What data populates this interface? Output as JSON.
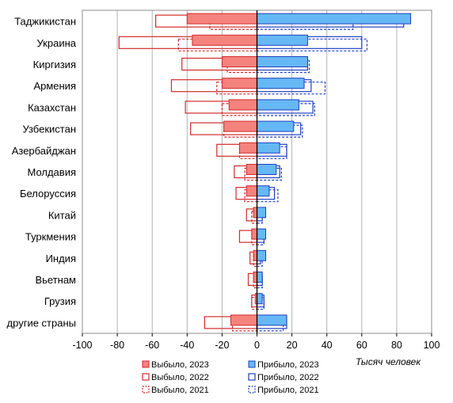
{
  "chart_data": {
    "type": "bar",
    "orientation": "horizontal",
    "xlabel": "Тысяч человек",
    "xlim": [
      -100,
      100
    ],
    "x_ticks": [
      -100,
      -80,
      -60,
      -40,
      -20,
      0,
      20,
      40,
      60,
      80,
      100
    ],
    "grid": true,
    "legend_position": "bottom",
    "categories": [
      "Таджикистан",
      "Украина",
      "Киргизия",
      "Армения",
      "Казахстан",
      "Узбекистан",
      "Азербайджан",
      "Молдавия",
      "Белоруссия",
      "Китай",
      "Туркмения",
      "Индия",
      "Вьетнам",
      "Грузия",
      "другие страны"
    ],
    "series": [
      {
        "name": "Выбыло, 2023",
        "style": "filled",
        "side": "negative",
        "values": [
          -40,
          -37,
          -20,
          -20,
          -16,
          -19,
          -10,
          -6,
          -6,
          -2,
          -3,
          -2,
          -2,
          -1,
          -15
        ]
      },
      {
        "name": "Выбыло, 2022",
        "style": "outline",
        "side": "negative",
        "values": [
          -58,
          -79,
          -43,
          -49,
          -41,
          -38,
          -23,
          -13,
          -12,
          -6,
          -10,
          -4,
          -5,
          -3,
          -30
        ]
      },
      {
        "name": "Выбыло, 2021",
        "style": "dashed",
        "side": "negative",
        "values": [
          -27,
          -45,
          -17,
          -23,
          -20,
          -19,
          -10,
          -7,
          -7,
          -3,
          -3,
          -2,
          -2,
          -3,
          -14
        ]
      },
      {
        "name": "Прибыло, 2023",
        "style": "filled",
        "side": "positive",
        "values": [
          88,
          29,
          29,
          27,
          24,
          21,
          13,
          11,
          7,
          5,
          5,
          5,
          3,
          3,
          17
        ]
      },
      {
        "name": "Прибыло, 2022",
        "style": "outline",
        "side": "positive",
        "values": [
          84,
          60,
          29,
          31,
          32,
          25,
          17,
          13,
          10,
          3,
          4,
          2,
          3,
          4,
          17
        ]
      },
      {
        "name": "Прибыло, 2021",
        "style": "dashed",
        "side": "positive",
        "values": [
          55,
          63,
          30,
          39,
          33,
          26,
          17,
          14,
          12,
          3,
          4,
          3,
          3,
          4,
          15
        ]
      }
    ],
    "colors": {
      "outflow_fill": "#f4837d",
      "outflow_stroke": "#d42a2a",
      "inflow_fill": "#66b8f5",
      "inflow_stroke": "#1f3fbf",
      "grid": "#b3b3b3"
    }
  }
}
